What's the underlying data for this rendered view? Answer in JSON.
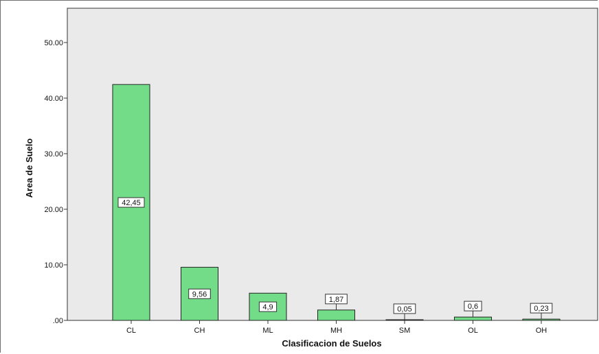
{
  "chart_data": {
    "type": "bar",
    "categories": [
      "CL",
      "CH",
      "ML",
      "MH",
      "SM",
      "OL",
      "OH"
    ],
    "values": [
      42.45,
      9.56,
      4.9,
      1.87,
      0.05,
      0.6,
      0.23
    ],
    "data_labels": [
      "42,45",
      "9,56",
      "4,9",
      "1,87",
      "0,05",
      "0,6",
      "0,23"
    ],
    "y_ticks": [
      ".00",
      "10.00",
      "20.00",
      "30.00",
      "40.00",
      "50.00"
    ],
    "xlabel": "Clasificacion de Suelos",
    "ylabel": "Area de Suelo",
    "ylim": [
      0,
      50
    ],
    "grid": false,
    "bar_color": "#73dc88",
    "plot_background": "#eaeaea"
  }
}
